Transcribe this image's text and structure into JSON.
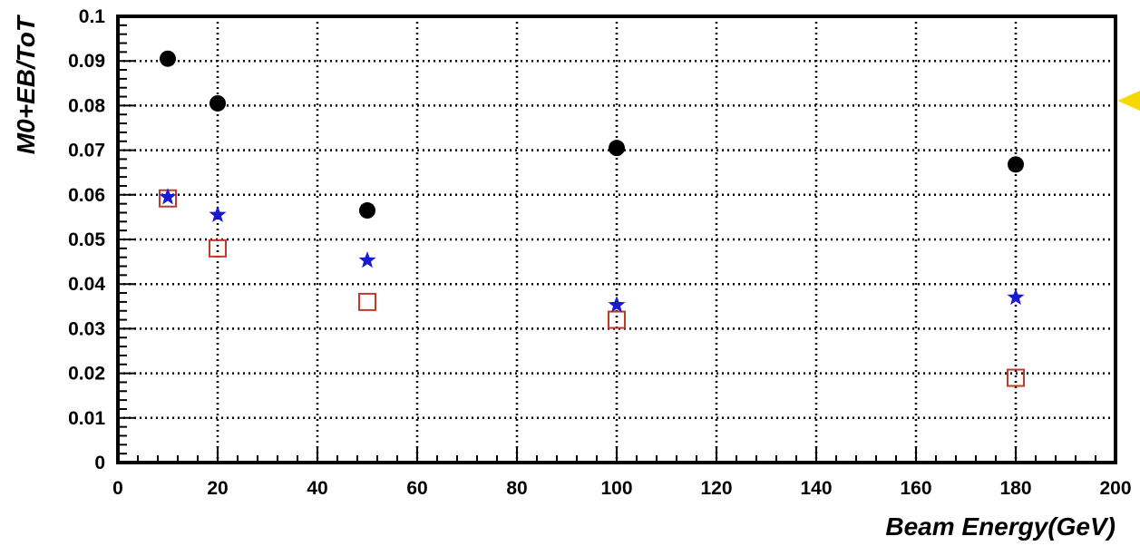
{
  "chart_data": {
    "type": "scatter",
    "title": "",
    "xlabel": "Beam Energy(GeV)",
    "ylabel": "M0+EB/ToT",
    "xlim": [
      0,
      200
    ],
    "ylim": [
      0,
      0.1
    ],
    "x_ticks": [
      0,
      20,
      40,
      60,
      80,
      100,
      120,
      140,
      160,
      180,
      200
    ],
    "x_tick_labels": [
      "0",
      "20",
      "40",
      "60",
      "80",
      "100",
      "120",
      "140",
      "160",
      "180",
      "200"
    ],
    "y_ticks": [
      0,
      0.01,
      0.02,
      0.03,
      0.04,
      0.05,
      0.06,
      0.07,
      0.08,
      0.09,
      0.1
    ],
    "y_tick_labels": [
      "0",
      "0.01",
      "0.02",
      "0.03",
      "0.04",
      "0.05",
      "0.06",
      "0.07",
      "0.08",
      "0.09",
      "0.1"
    ],
    "grid": true,
    "legend": "none",
    "series": [
      {
        "marker": "filled-circle",
        "color": "#000000",
        "points": [
          {
            "x": 10,
            "y": 0.0905
          },
          {
            "x": 20,
            "y": 0.0805
          },
          {
            "x": 50,
            "y": 0.0565
          },
          {
            "x": 100,
            "y": 0.0705
          },
          {
            "x": 180,
            "y": 0.0668
          }
        ]
      },
      {
        "marker": "star",
        "color": "#1a1ad0",
        "points": [
          {
            "x": 10,
            "y": 0.0595
          },
          {
            "x": 20,
            "y": 0.0555
          },
          {
            "x": 50,
            "y": 0.0453
          },
          {
            "x": 100,
            "y": 0.0353
          },
          {
            "x": 180,
            "y": 0.037
          }
        ]
      },
      {
        "marker": "open-square",
        "color": "#c0392b",
        "points": [
          {
            "x": 10,
            "y": 0.0592
          },
          {
            "x": 20,
            "y": 0.048
          },
          {
            "x": 50,
            "y": 0.036
          },
          {
            "x": 100,
            "y": 0.032
          },
          {
            "x": 180,
            "y": 0.019
          }
        ]
      }
    ],
    "edge_marker": {
      "shape": "triangle-left",
      "color": "#f5d800"
    }
  }
}
